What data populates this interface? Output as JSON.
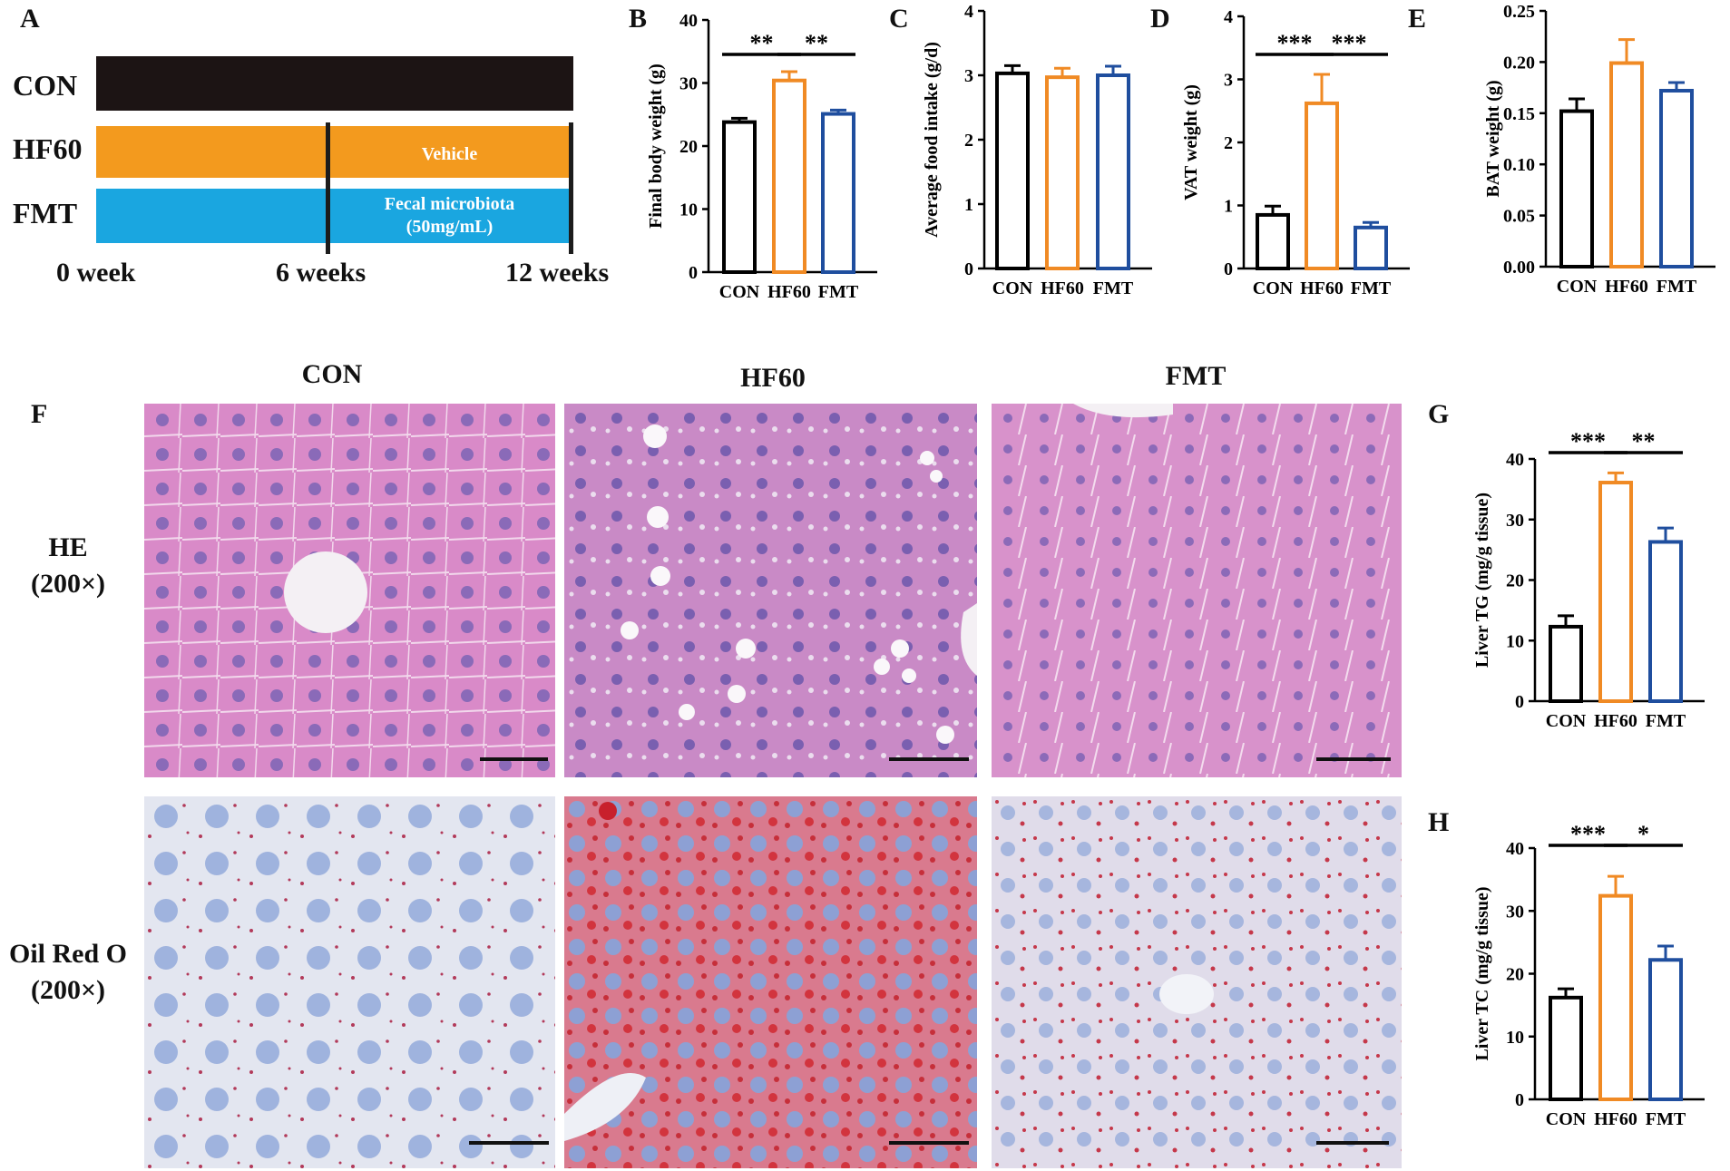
{
  "colors": {
    "con": "#000000",
    "hf60": "#F08A24",
    "fmt": "#1F4E9E",
    "vehicle_bar": "#F39A1E",
    "fmt_bar": "#1AA6E0"
  },
  "panel_labels": {
    "A": "A",
    "B": "B",
    "C": "C",
    "D": "D",
    "E": "E",
    "F": "F",
    "G": "G",
    "H": "H"
  },
  "timeline": {
    "groups": [
      "CON",
      "HF60",
      "FMT"
    ],
    "vehicle_label": "Vehicle",
    "fmt_label_line1": "Fecal microbiota",
    "fmt_label_line2": "(50mg/mL)",
    "weeks": [
      "0 week",
      "6 weeks",
      "12 weeks"
    ]
  },
  "histology": {
    "columns": [
      "CON",
      "HF60",
      "FMT"
    ],
    "rows": [
      {
        "line1": "HE",
        "line2": "(200×)"
      },
      {
        "line1": "Oil Red O",
        "line2": "(200×)"
      }
    ]
  },
  "chart_data": [
    {
      "panel": "B",
      "type": "bar",
      "categories": [
        "CON",
        "HF60",
        "FMT"
      ],
      "values": [
        23.8,
        30.4,
        25.1
      ],
      "errors": [
        0.6,
        1.4,
        0.6
      ],
      "ylabel": "Final body weight (g)",
      "ylim": [
        0,
        40
      ],
      "yticks": [
        "0",
        "10",
        "20",
        "30",
        "40"
      ],
      "significance": [
        {
          "from": 0,
          "to": 1,
          "label": "**"
        },
        {
          "from": 1,
          "to": 2,
          "label": "**"
        }
      ]
    },
    {
      "panel": "C",
      "type": "bar",
      "categories": [
        "CON",
        "HF60",
        "FMT"
      ],
      "values": [
        3.03,
        2.97,
        3.0
      ],
      "errors": [
        0.12,
        0.14,
        0.14
      ],
      "ylabel": "Average food intake (g/d)",
      "ylim": [
        0,
        4
      ],
      "yticks": [
        "0",
        "1",
        "2",
        "3",
        "4"
      ],
      "significance": []
    },
    {
      "panel": "D",
      "type": "bar",
      "categories": [
        "CON",
        "HF60",
        "FMT"
      ],
      "values": [
        0.85,
        2.62,
        0.65
      ],
      "errors": [
        0.14,
        0.46,
        0.08
      ],
      "ylabel": "VAT weight (g)",
      "ylim": [
        0,
        4
      ],
      "yticks": [
        "0",
        "1",
        "2",
        "3",
        "4"
      ],
      "significance": [
        {
          "from": 0,
          "to": 1,
          "label": "***"
        },
        {
          "from": 1,
          "to": 2,
          "label": "***"
        }
      ]
    },
    {
      "panel": "E",
      "type": "bar",
      "categories": [
        "CON",
        "HF60",
        "FMT"
      ],
      "values": [
        0.152,
        0.199,
        0.172
      ],
      "errors": [
        0.012,
        0.023,
        0.008
      ],
      "ylabel": "BAT weight (g)",
      "ylim": [
        0,
        0.25
      ],
      "yticks": [
        "0.00",
        "0.05",
        "0.10",
        "0.15",
        "0.20",
        "0.25"
      ],
      "significance": []
    },
    {
      "panel": "G",
      "type": "bar",
      "categories": [
        "CON",
        "HF60",
        "FMT"
      ],
      "values": [
        12.3,
        36.1,
        26.3
      ],
      "errors": [
        1.8,
        1.6,
        2.3
      ],
      "ylabel": "Liver TG (mg/g tissue)",
      "ylim": [
        0,
        40
      ],
      "yticks": [
        "0",
        "10",
        "20",
        "30",
        "40"
      ],
      "significance": [
        {
          "from": 0,
          "to": 1,
          "label": "***"
        },
        {
          "from": 1,
          "to": 2,
          "label": "**"
        }
      ]
    },
    {
      "panel": "H",
      "type": "bar",
      "categories": [
        "CON",
        "HF60",
        "FMT"
      ],
      "values": [
        16.2,
        32.4,
        22.2
      ],
      "errors": [
        1.4,
        3.1,
        2.2
      ],
      "ylabel": "Liver TC (mg/g tissue)",
      "ylim": [
        0,
        40
      ],
      "yticks": [
        "0",
        "10",
        "20",
        "30",
        "40"
      ],
      "significance": [
        {
          "from": 0,
          "to": 1,
          "label": "***"
        },
        {
          "from": 1,
          "to": 2,
          "label": "*"
        }
      ]
    }
  ]
}
